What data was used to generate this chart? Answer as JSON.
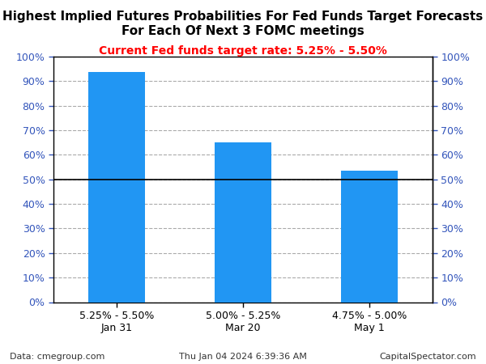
{
  "title_line1": "Highest Implied Futures Probabilities For Fed Funds Target Forecasts",
  "title_line2": "For Each Of Next 3 FOMC meetings",
  "subtitle": "Current Fed funds target rate: 5.25% - 5.50%",
  "categories": [
    "5.25% - 5.50%\nJan 31",
    "5.00% - 5.25%\nMar 20",
    "4.75% - 5.00%\nMay 1"
  ],
  "values": [
    93.5,
    65.0,
    53.5
  ],
  "bar_color": "#2196F3",
  "title_color": "#000000",
  "subtitle_color": "#FF0000",
  "tick_label_color": "#3355BB",
  "ylim": [
    0,
    100
  ],
  "yticks": [
    0,
    10,
    20,
    30,
    40,
    50,
    60,
    70,
    80,
    90,
    100
  ],
  "grid_color": "#AAAAAA",
  "hline_y": 50,
  "hline_color": "#000000",
  "footer_left": "Data: cmegroup.com",
  "footer_center": "Thu Jan 04 2024 6:39:36 AM",
  "footer_right": "CapitalSpectator.com",
  "bg_color": "#FFFFFF",
  "plot_bg_color": "#FFFFFF",
  "title_fontsize": 11,
  "subtitle_fontsize": 10,
  "tick_fontsize": 9,
  "footer_fontsize": 8,
  "xlabel_fontsize": 9,
  "bar_width": 0.45,
  "spine_color": "#000000",
  "x_label_color": "#1155CC"
}
